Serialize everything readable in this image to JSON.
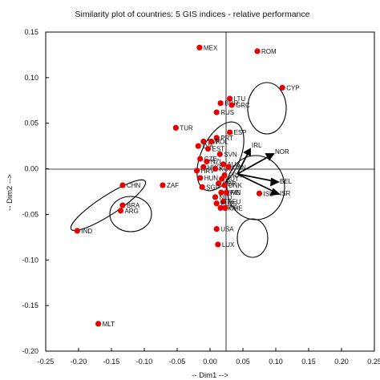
{
  "chart_data": {
    "type": "scatter",
    "title": "Similarity plot of countries: 5 GIS indices  - relative performance",
    "xlabel": "-- Dim1 -->",
    "ylabel": "-- Dim2 -->",
    "xlim": [
      -0.25,
      0.25
    ],
    "ylim": [
      -0.2,
      0.15
    ],
    "xticks": [
      -0.25,
      -0.2,
      -0.15,
      -0.1,
      -0.05,
      0,
      0.05,
      0.1,
      0.15,
      0.2,
      0.25
    ],
    "xtick_labels": [
      "-0.25",
      "-0.20",
      "-0.15",
      "-0.10",
      "-0.05",
      "0.00",
      "0.05",
      "0.10",
      "0.15",
      "0.20",
      "0.25"
    ],
    "yticks": [
      -0.2,
      -0.15,
      -0.1,
      -0.05,
      0,
      0.05,
      0.1,
      0.15
    ],
    "ytick_labels": [
      "-0.20",
      "-0.15",
      "-0.10",
      "-0.05",
      "0.00",
      "0.05",
      "0.10",
      "0.15"
    ],
    "grid": false,
    "marker_color": "#e60000",
    "points": [
      {
        "label": "MEX",
        "x": -0.016,
        "y": 0.133
      },
      {
        "label": "ROM",
        "x": 0.072,
        "y": 0.129
      },
      {
        "label": "CYP",
        "x": 0.11,
        "y": 0.089
      },
      {
        "label": "LTU",
        "x": 0.03,
        "y": 0.077
      },
      {
        "label": "BGR",
        "x": 0.016,
        "y": 0.072
      },
      {
        "label": "GRC",
        "x": 0.033,
        "y": 0.07
      },
      {
        "label": "RUS",
        "x": 0.01,
        "y": 0.062
      },
      {
        "label": "TUR",
        "x": -0.052,
        "y": 0.045
      },
      {
        "label": "ESP",
        "x": 0.03,
        "y": 0.04
      },
      {
        "label": "PRT",
        "x": 0.01,
        "y": 0.034
      },
      {
        "label": "SVK",
        "x": -0.01,
        "y": 0.03
      },
      {
        "label": "POL",
        "x": 0.002,
        "y": 0.03
      },
      {
        "label": "LVA",
        "x": -0.018,
        "y": 0.025
      },
      {
        "label": "EST",
        "x": -0.003,
        "y": 0.022
      },
      {
        "label": "SVN",
        "x": 0.015,
        "y": 0.016
      },
      {
        "label": "CZE",
        "x": -0.015,
        "y": 0.011
      },
      {
        "label": "NZL",
        "x": -0.005,
        "y": 0.008
      },
      {
        "label": "AUS",
        "x": 0.02,
        "y": 0.005
      },
      {
        "label": "HKG",
        "x": -0.01,
        "y": 0.002
      },
      {
        "label": "KOR",
        "x": 0.008,
        "y": 0.0
      },
      {
        "label": "CAN",
        "x": 0.028,
        "y": 0.002
      },
      {
        "label": "HRV",
        "x": -0.02,
        "y": -0.002
      },
      {
        "label": "FRA",
        "x": 0.022,
        "y": -0.007
      },
      {
        "label": "AUT",
        "x": 0.018,
        "y": -0.011
      },
      {
        "label": "HUN",
        "x": -0.015,
        "y": -0.01
      },
      {
        "label": "GBR",
        "x": 0.013,
        "y": -0.016
      },
      {
        "label": "DNK",
        "x": 0.022,
        "y": -0.018
      },
      {
        "label": "SGP",
        "x": -0.012,
        "y": -0.02
      },
      {
        "label": "SWE",
        "x": 0.017,
        "y": -0.026
      },
      {
        "label": "FIN",
        "x": 0.025,
        "y": -0.026
      },
      {
        "label": "NLD",
        "x": 0.008,
        "y": -0.031
      },
      {
        "label": "DEU",
        "x": 0.02,
        "y": -0.036
      },
      {
        "label": "EU25",
        "x": 0.01,
        "y": -0.038
      },
      {
        "label": "JPN",
        "x": 0.016,
        "y": -0.043
      },
      {
        "label": "CHE",
        "x": 0.023,
        "y": -0.043
      },
      {
        "label": "ISL",
        "x": 0.075,
        "y": -0.027
      },
      {
        "label": "ZAF",
        "x": -0.072,
        "y": -0.018
      },
      {
        "label": "CHN",
        "x": -0.133,
        "y": -0.018
      },
      {
        "label": "BRA",
        "x": -0.133,
        "y": -0.04
      },
      {
        "label": "ARG",
        "x": -0.136,
        "y": -0.046
      },
      {
        "label": "IND",
        "x": -0.202,
        "y": -0.068
      },
      {
        "label": "USA",
        "x": 0.01,
        "y": -0.066
      },
      {
        "label": "LUX",
        "x": 0.012,
        "y": -0.083
      },
      {
        "label": "MLT",
        "x": -0.17,
        "y": -0.17
      }
    ],
    "arrow_labels": [
      "IRL",
      "NOR",
      "BEL",
      "ISR"
    ]
  }
}
